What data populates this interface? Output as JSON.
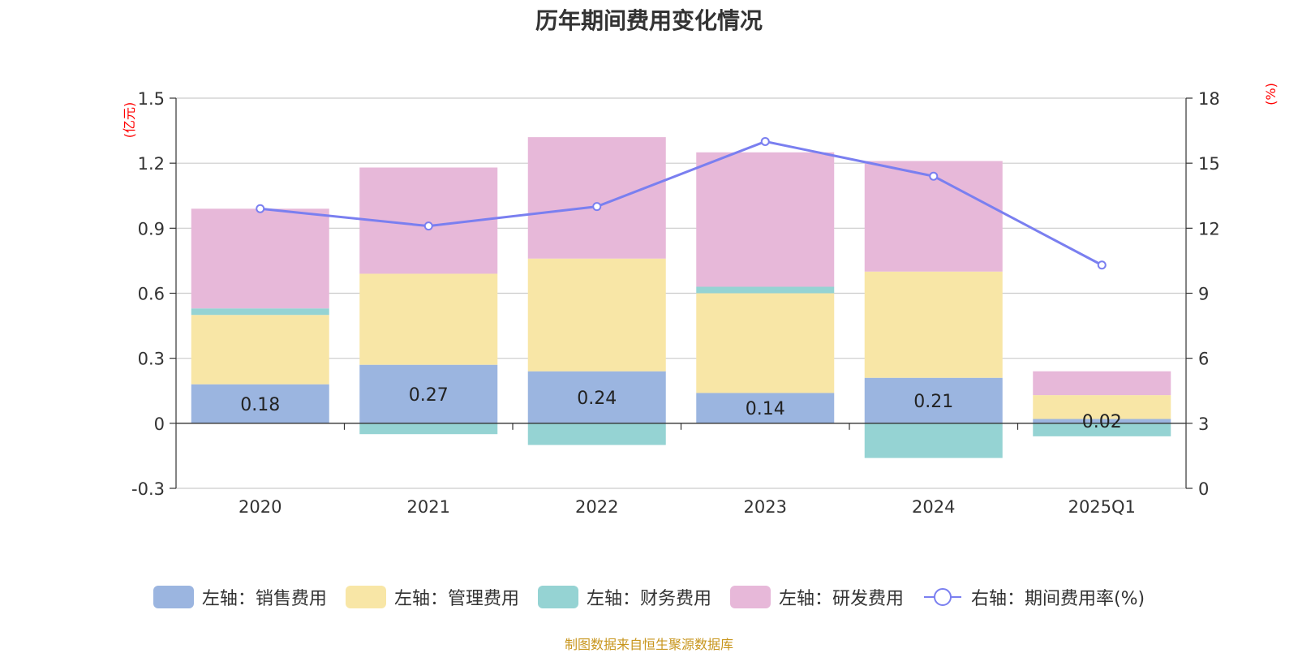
{
  "chart_data": {
    "type": "bar",
    "title": "历年期间费用变化情况",
    "categories": [
      "2020",
      "2021",
      "2022",
      "2023",
      "2024",
      "2025Q1"
    ],
    "left_axis": {
      "unit": "(亿元)",
      "ylim": [
        -0.3,
        1.5
      ],
      "ticks": [
        "-0.3",
        "0",
        "0.3",
        "0.6",
        "0.9",
        "1.2",
        "1.5"
      ],
      "tick_values": [
        -0.3,
        0,
        0.3,
        0.6,
        0.9,
        1.2,
        1.5
      ]
    },
    "right_axis": {
      "unit": "(%)",
      "ylim": [
        0,
        18
      ],
      "ticks": [
        "0",
        "3",
        "6",
        "9",
        "12",
        "15",
        "18"
      ],
      "tick_values": [
        0,
        3,
        6,
        9,
        12,
        15,
        18
      ]
    },
    "series": [
      {
        "name": "左轴：销售费用",
        "type": "bar",
        "axis": "left",
        "color": "#9bb5e0",
        "values": [
          0.18,
          0.27,
          0.24,
          0.14,
          0.21,
          0.02
        ],
        "data_labels": [
          "0.18",
          "0.27",
          "0.24",
          "0.14",
          "0.21",
          "0.02"
        ]
      },
      {
        "name": "左轴：管理费用",
        "type": "bar",
        "axis": "left",
        "color": "#f8e6a6",
        "values": [
          0.32,
          0.42,
          0.52,
          0.46,
          0.49,
          0.11
        ]
      },
      {
        "name": "左轴：财务费用",
        "type": "bar",
        "axis": "left",
        "color": "#95d3d3",
        "values": [
          0.03,
          -0.05,
          -0.1,
          0.03,
          -0.16,
          -0.06
        ]
      },
      {
        "name": "左轴：研发费用",
        "type": "bar",
        "axis": "left",
        "color": "#e7b8d9",
        "values": [
          0.46,
          0.49,
          0.56,
          0.62,
          0.51,
          0.11
        ]
      },
      {
        "name": "右轴：期间费用率(%)",
        "type": "line",
        "axis": "right",
        "color": "#7a7ff0",
        "values": [
          12.9,
          12.1,
          13.0,
          16.0,
          14.4,
          10.3
        ]
      }
    ],
    "legend_position": "bottom",
    "grid": true
  },
  "source_note": "制图数据来自恒生聚源数据库"
}
